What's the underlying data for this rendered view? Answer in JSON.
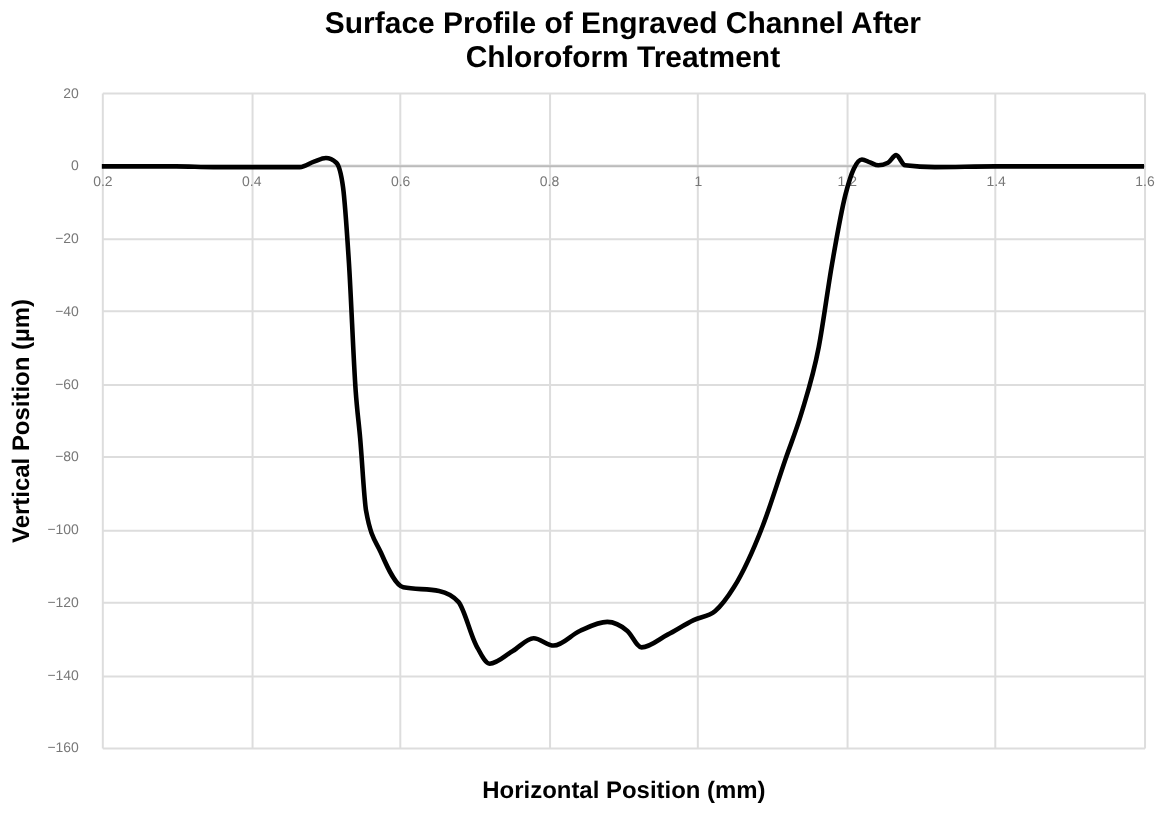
{
  "chart_data": {
    "type": "line",
    "title": "Surface Profile of Engraved Channel After Chloroform Treatment",
    "xlabel": "Horizontal Position (mm)",
    "ylabel": "Vertical Position (µm)",
    "x": [
      0.2,
      0.3,
      0.35,
      0.4,
      0.466,
      0.485,
      0.501,
      0.515,
      0.524,
      0.532,
      0.541,
      0.547,
      0.555,
      0.575,
      0.605,
      0.653,
      0.679,
      0.703,
      0.721,
      0.752,
      0.78,
      0.807,
      0.842,
      0.879,
      0.906,
      0.925,
      0.96,
      0.995,
      1.024,
      1.049,
      1.088,
      1.118,
      1.14,
      1.163,
      1.181,
      1.199,
      1.21,
      1.221,
      1.232,
      1.243,
      1.256,
      1.267,
      1.279,
      1.319,
      1.4,
      1.5,
      1.6
    ],
    "series": [
      {
        "color": "#000000",
        "values": [
          -0.3,
          -0.3,
          -0.5,
          -0.5,
          -0.5,
          1,
          2,
          0.7,
          -6,
          -27,
          -62,
          -75,
          -95,
          -106.5,
          -116,
          -117,
          -120,
          -132,
          -137,
          -133.5,
          -130,
          -132,
          -128,
          -125.5,
          -128,
          -132.5,
          -129,
          -125,
          -122.5,
          -116,
          -99,
          -81,
          -68,
          -50,
          -27,
          -8,
          -1,
          1.6,
          0.8,
          0,
          0.7,
          2.8,
          0,
          -0.5,
          -0.3,
          -0.3,
          -0.3
        ]
      }
    ],
    "xlim": [
      0.2,
      1.6
    ],
    "xticks": [
      0.2,
      0.4,
      0.6,
      0.8,
      1,
      1.2,
      1.4,
      1.6
    ],
    "ylim": [
      -160,
      20
    ],
    "yticks": [
      -160,
      -140,
      -120,
      -100,
      -80,
      -60,
      -40,
      -20,
      0,
      20
    ],
    "grid": true,
    "marker": "none",
    "line_style": "solid"
  }
}
